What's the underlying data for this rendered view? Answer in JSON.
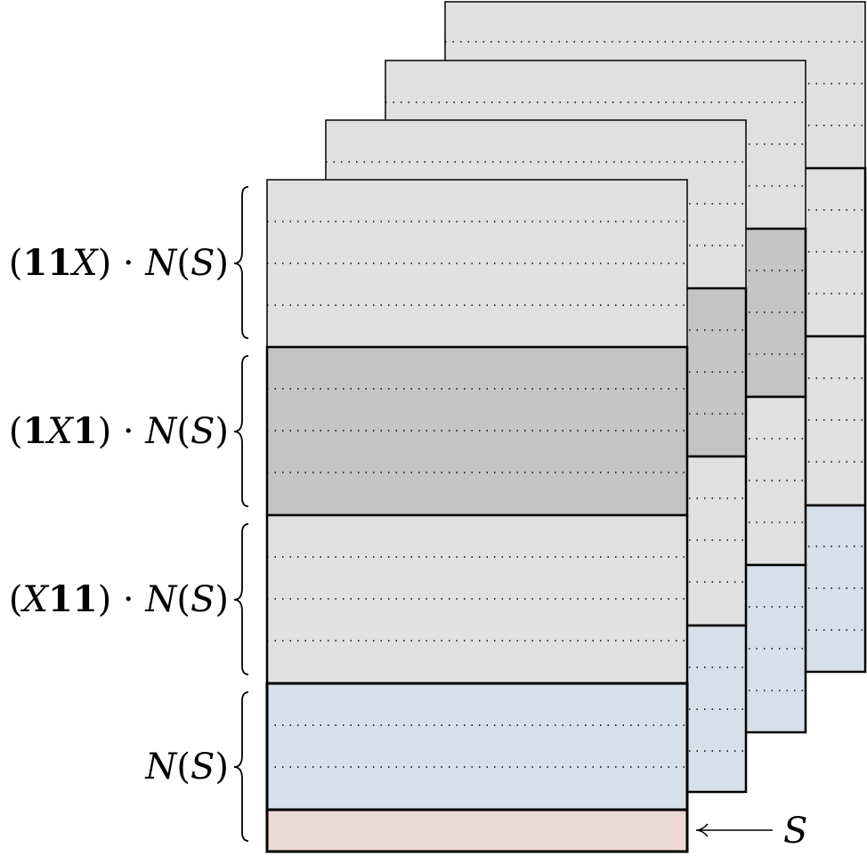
{
  "labels": {
    "row1": {
      "open": "(",
      "b1": "11",
      "x": "X",
      "close": ")",
      "dot": " · ",
      "n": "N",
      "po": "(",
      "s": "S",
      "pc": ")"
    },
    "row2": {
      "open": "(",
      "b1": "1",
      "x": "X",
      "b2": "1",
      "close": ")",
      "dot": " · ",
      "n": "N",
      "po": "(",
      "s": "S",
      "pc": ")"
    },
    "row3": {
      "open": "(",
      "x": "X",
      "b2": "11",
      "close": ")",
      "dot": " · ",
      "n": "N",
      "po": "(",
      "s": "S",
      "pc": ")"
    },
    "row4": {
      "n": "N",
      "po": "(",
      "s": "S",
      "pc": ")"
    },
    "arrow": "S"
  },
  "colors": {
    "light_gray": "#e0e0e0",
    "mid_gray": "#c4c4c4",
    "light_blue": "#d6e0ea",
    "light_red": "#ecd8d4",
    "stroke": "#000000"
  }
}
